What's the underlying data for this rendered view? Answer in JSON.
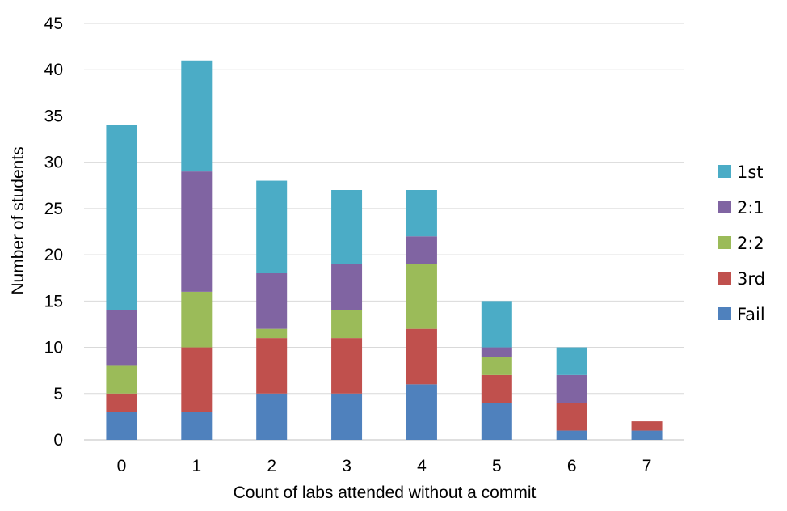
{
  "chart_data": {
    "type": "bar",
    "stacked": true,
    "xlabel": "Count of labs attended without a commit",
    "ylabel": "Number of students",
    "categories": [
      "0",
      "1",
      "2",
      "3",
      "4",
      "5",
      "6",
      "7"
    ],
    "ylim": [
      0,
      45
    ],
    "yticks": [
      0,
      5,
      10,
      15,
      20,
      25,
      30,
      35,
      40,
      45
    ],
    "grid": true,
    "legend_position": "right",
    "series": [
      {
        "name": "Fail",
        "color": "#4f81bd",
        "values": [
          3,
          3,
          5,
          5,
          6,
          4,
          1,
          1
        ]
      },
      {
        "name": "3rd",
        "color": "#c0504d",
        "values": [
          2,
          7,
          6,
          6,
          6,
          3,
          3,
          1
        ]
      },
      {
        "name": "2:2",
        "color": "#9bbb59",
        "values": [
          3,
          6,
          1,
          3,
          7,
          2,
          0,
          0
        ]
      },
      {
        "name": "2:1",
        "color": "#8064a2",
        "values": [
          6,
          13,
          6,
          5,
          3,
          1,
          3,
          0
        ]
      },
      {
        "name": "1st",
        "color": "#4bacc6",
        "values": [
          20,
          12,
          10,
          8,
          5,
          5,
          3,
          0
        ]
      }
    ],
    "legend_order": [
      "1st",
      "2:1",
      "2:2",
      "3rd",
      "Fail"
    ]
  }
}
